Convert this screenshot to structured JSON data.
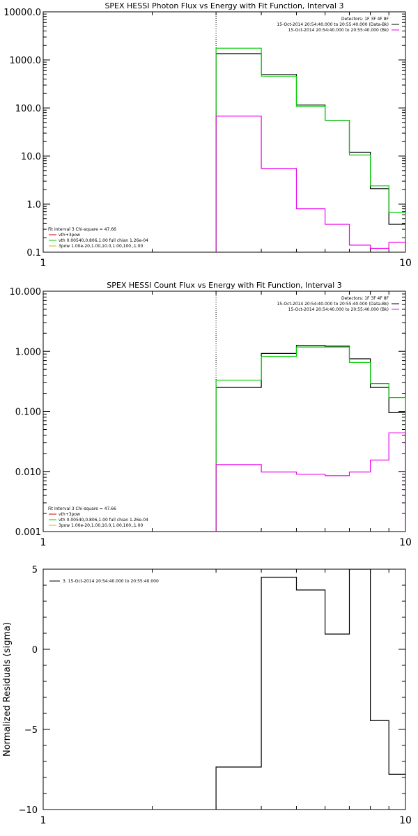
{
  "chart_data": [
    {
      "type": "line",
      "step": true,
      "title": "SPEX HESSI Photon Flux vs Energy with Fit Function, Interval 3",
      "xlabel": "",
      "ylabel": "",
      "xscale": "log",
      "yscale": "log",
      "xlim": [
        1,
        10
      ],
      "ylim": [
        0.1,
        10000
      ],
      "xtick_labels": [
        "1",
        "10"
      ],
      "ytick_labels": [
        "0.1",
        "1.0",
        "10.0",
        "100.0",
        "1000.0",
        "10000.0"
      ],
      "vline_x": 3,
      "legend_top_right": [
        "Detectors: 1F 3F 4F 8F",
        "15-Oct-2014 20:54:40.000 to 20:55:40.000 (Data-Bk)",
        "15-Oct-2014 20:54:40.000 to 20:55:40.000 (Bk)"
      ],
      "legend_bottom_left": [
        "Fit Interval 3   Chi-square = 47.66",
        "vth+3pow",
        "vth 0.00540,0.806,1.00  full chian 1.26e-04",
        "3pow 1.00e-20,1.00,10.0,1.00,100.,1.00"
      ],
      "edges": [
        3,
        4,
        5,
        6,
        7,
        8,
        9,
        10
      ],
      "series": [
        {
          "name": "15-Oct-2014 20:54:40.000 to 20:55:40.000 (Data-Bk)",
          "color": "#000000",
          "values": [
            1350,
            500,
            115,
            55,
            12,
            2.1,
            0.38
          ]
        },
        {
          "name": "vth+3pow",
          "color": "#00cc00",
          "values": [
            1750,
            460,
            108,
            55,
            10.5,
            2.4,
            0.68
          ]
        },
        {
          "name": "15-Oct-2014 20:54:40.000 to 20:55:40.000 (Bk)",
          "color": "#ee00ee",
          "values": [
            68,
            5.5,
            0.8,
            0.38,
            0.14,
            0.12,
            0.16
          ]
        }
      ]
    },
    {
      "type": "line",
      "step": true,
      "title": "SPEX HESSI Count Flux vs Energy with Fit Function, Interval 3",
      "xlabel": "",
      "ylabel": "",
      "xscale": "log",
      "yscale": "log",
      "xlim": [
        1,
        10
      ],
      "ylim": [
        0.001,
        10
      ],
      "xtick_labels": [
        "1",
        "10"
      ],
      "ytick_labels": [
        "0.001",
        "0.010",
        "0.100",
        "1.000",
        "10.000"
      ],
      "vline_x": 3,
      "legend_top_right": [
        "Detectors: 1F 3F 4F 8F",
        "15-Oct-2014 20:54:40.000 to 20:55:40.000 (Data-Bk)",
        "15-Oct-2014 20:54:40.000 to 20:55:40.000 (Bk)"
      ],
      "legend_bottom_left": [
        "Fit Interval 3   Chi-square = 47.66",
        "vth+3pow",
        "vth 0.00540,0.806,1.00  full chian 1.26e-04",
        "3pow 1.00e-20,1.00,10.0,1.00,100.,1.00"
      ],
      "edges": [
        3,
        4,
        5,
        6,
        7,
        8,
        9,
        10
      ],
      "series": [
        {
          "name": "15-Oct-2014 20:54:40.000 to 20:55:40.000 (Data-Bk)",
          "color": "#000000",
          "values": [
            0.25,
            0.92,
            1.25,
            1.22,
            0.75,
            0.25,
            0.095
          ]
        },
        {
          "name": "vth+3pow",
          "color": "#00cc00",
          "values": [
            0.33,
            0.82,
            1.18,
            1.18,
            0.65,
            0.29,
            0.17
          ]
        },
        {
          "name": "15-Oct-2014 20:54:40.000 to 20:55:40.000 (Bk)",
          "color": "#ee00ee",
          "values": [
            0.013,
            0.0098,
            0.009,
            0.0085,
            0.0098,
            0.0155,
            0.044
          ]
        }
      ]
    },
    {
      "type": "line",
      "step": true,
      "title": "",
      "xlabel": "",
      "ylabel": "Normalized Residuals (sigma)",
      "xscale": "log",
      "yscale": "linear",
      "xlim": [
        1,
        10
      ],
      "ylim": [
        -10,
        5
      ],
      "xtick_labels": [
        "1",
        "10"
      ],
      "ytick_values": [
        -10,
        -5,
        0,
        5
      ],
      "ytick_labels": [
        "−10",
        "−5",
        "0",
        "5"
      ],
      "legend_top_left": [
        "3. 15-Oct-2014 20:54:40.000 to 20:55:40.000"
      ],
      "edges": [
        3,
        4,
        5,
        6,
        7,
        8,
        9,
        10
      ],
      "series": [
        {
          "name": "3. 15-Oct-2014 20:54:40.000 to 20:55:40.000",
          "color": "#000000",
          "values": [
            -7.35,
            4.5,
            3.7,
            0.95,
            5.0,
            -4.45,
            -7.8
          ]
        }
      ]
    }
  ]
}
